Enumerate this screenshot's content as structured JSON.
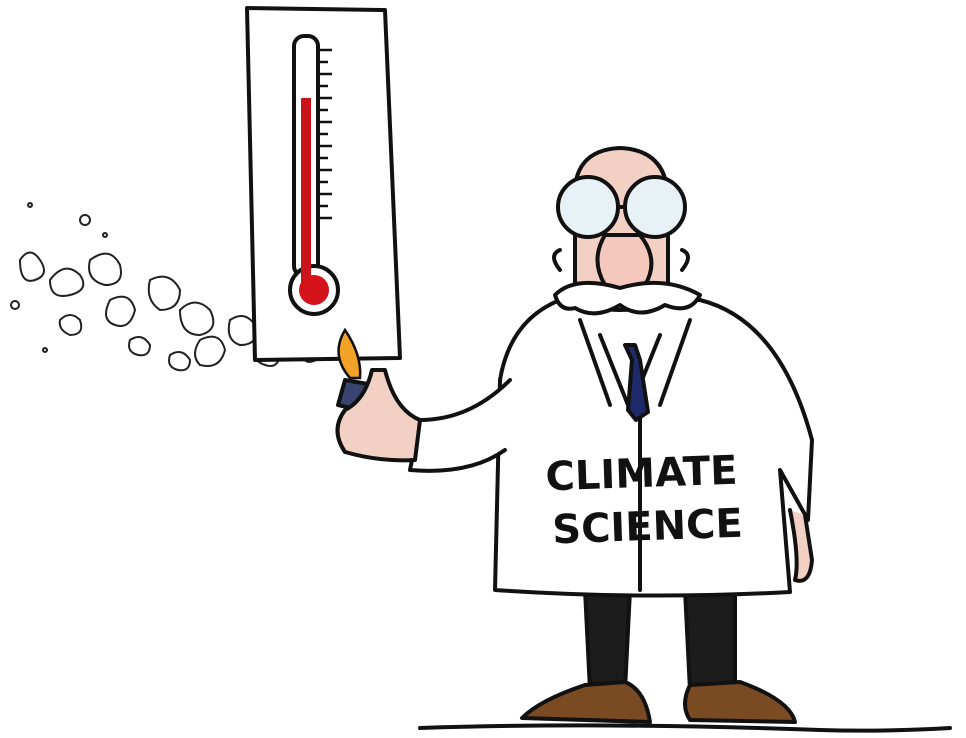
{
  "label": {
    "line1": "CLIMATE",
    "line2": "SCIENCE"
  }
}
